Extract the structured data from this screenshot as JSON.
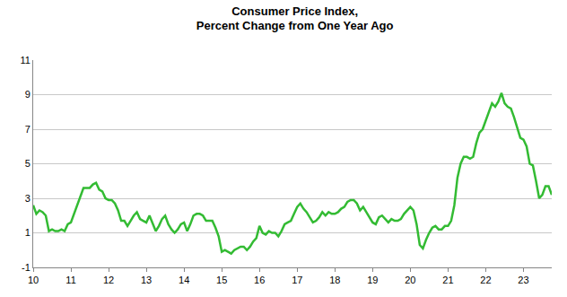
{
  "chart_data": {
    "type": "line",
    "title": "Consumer Price Index,\nPercent Change from One Year Ago",
    "categories": [
      "10",
      null,
      null,
      null,
      null,
      null,
      null,
      null,
      null,
      null,
      null,
      null,
      "11",
      null,
      null,
      null,
      null,
      null,
      null,
      null,
      null,
      null,
      null,
      null,
      "12",
      null,
      null,
      null,
      null,
      null,
      null,
      null,
      null,
      null,
      null,
      null,
      "13",
      null,
      null,
      null,
      null,
      null,
      null,
      null,
      null,
      null,
      null,
      null,
      "14",
      null,
      null,
      null,
      null,
      null,
      null,
      null,
      null,
      null,
      null,
      null,
      "15",
      null,
      null,
      null,
      null,
      null,
      null,
      null,
      null,
      null,
      null,
      null,
      "16",
      null,
      null,
      null,
      null,
      null,
      null,
      null,
      null,
      null,
      null,
      null,
      "17",
      null,
      null,
      null,
      null,
      null,
      null,
      null,
      null,
      null,
      null,
      null,
      "18",
      null,
      null,
      null,
      null,
      null,
      null,
      null,
      null,
      null,
      null,
      null,
      "19",
      null,
      null,
      null,
      null,
      null,
      null,
      null,
      null,
      null,
      null,
      null,
      "20",
      null,
      null,
      null,
      null,
      null,
      null,
      null,
      null,
      null,
      null,
      null,
      "21",
      null,
      null,
      null,
      null,
      null,
      null,
      null,
      null,
      null,
      null,
      null,
      "22",
      null,
      null,
      null,
      null,
      null,
      null,
      null,
      null,
      null,
      null,
      null,
      "23",
      null,
      null,
      null,
      null,
      null,
      null,
      null,
      null,
      null
    ],
    "values": [
      2.6,
      2.1,
      2.3,
      2.2,
      2.0,
      1.1,
      1.2,
      1.1,
      1.1,
      1.2,
      1.1,
      1.5,
      1.6,
      2.1,
      2.7,
      3.2,
      3.6,
      3.6,
      3.6,
      3.8,
      3.9,
      3.5,
      3.4,
      3.0,
      2.9,
      2.9,
      2.7,
      2.3,
      1.7,
      1.7,
      1.4,
      1.7,
      2.0,
      2.2,
      1.8,
      1.7,
      1.6,
      2.0,
      1.5,
      1.1,
      1.4,
      1.8,
      2.0,
      1.5,
      1.2,
      1.0,
      1.2,
      1.5,
      1.6,
      1.1,
      1.5,
      2.0,
      2.1,
      2.1,
      2.0,
      1.7,
      1.7,
      1.7,
      1.3,
      0.8,
      -0.1,
      0.0,
      -0.1,
      -0.2,
      0.0,
      0.1,
      0.2,
      0.2,
      0.0,
      0.2,
      0.5,
      0.7,
      1.4,
      1.0,
      0.9,
      1.1,
      1.0,
      1.0,
      0.8,
      1.1,
      1.5,
      1.6,
      1.7,
      2.1,
      2.5,
      2.7,
      2.4,
      2.2,
      1.9,
      1.6,
      1.7,
      1.9,
      2.2,
      2.0,
      2.2,
      2.1,
      2.1,
      2.2,
      2.4,
      2.5,
      2.8,
      2.9,
      2.9,
      2.7,
      2.3,
      2.5,
      2.2,
      1.9,
      1.6,
      1.5,
      1.9,
      2.0,
      1.8,
      1.6,
      1.8,
      1.7,
      1.7,
      1.8,
      2.1,
      2.3,
      2.5,
      2.3,
      1.5,
      0.3,
      0.1,
      0.6,
      1.0,
      1.3,
      1.4,
      1.2,
      1.2,
      1.4,
      1.4,
      1.7,
      2.6,
      4.2,
      5.0,
      5.4,
      5.4,
      5.3,
      5.4,
      6.2,
      6.8,
      7.0,
      7.5,
      7.9,
      8.5,
      8.3,
      8.6,
      9.1,
      8.5,
      8.3,
      8.2,
      7.7,
      7.1,
      6.5,
      6.4,
      6.0,
      5.0,
      4.9,
      4.0,
      3.0,
      3.2,
      3.7,
      3.7,
      3.2
    ],
    "color": "#33bb33",
    "ylim": [
      -1,
      11
    ],
    "yticks": [
      -1,
      1,
      3,
      5,
      7,
      9,
      11
    ],
    "grid": true
  }
}
